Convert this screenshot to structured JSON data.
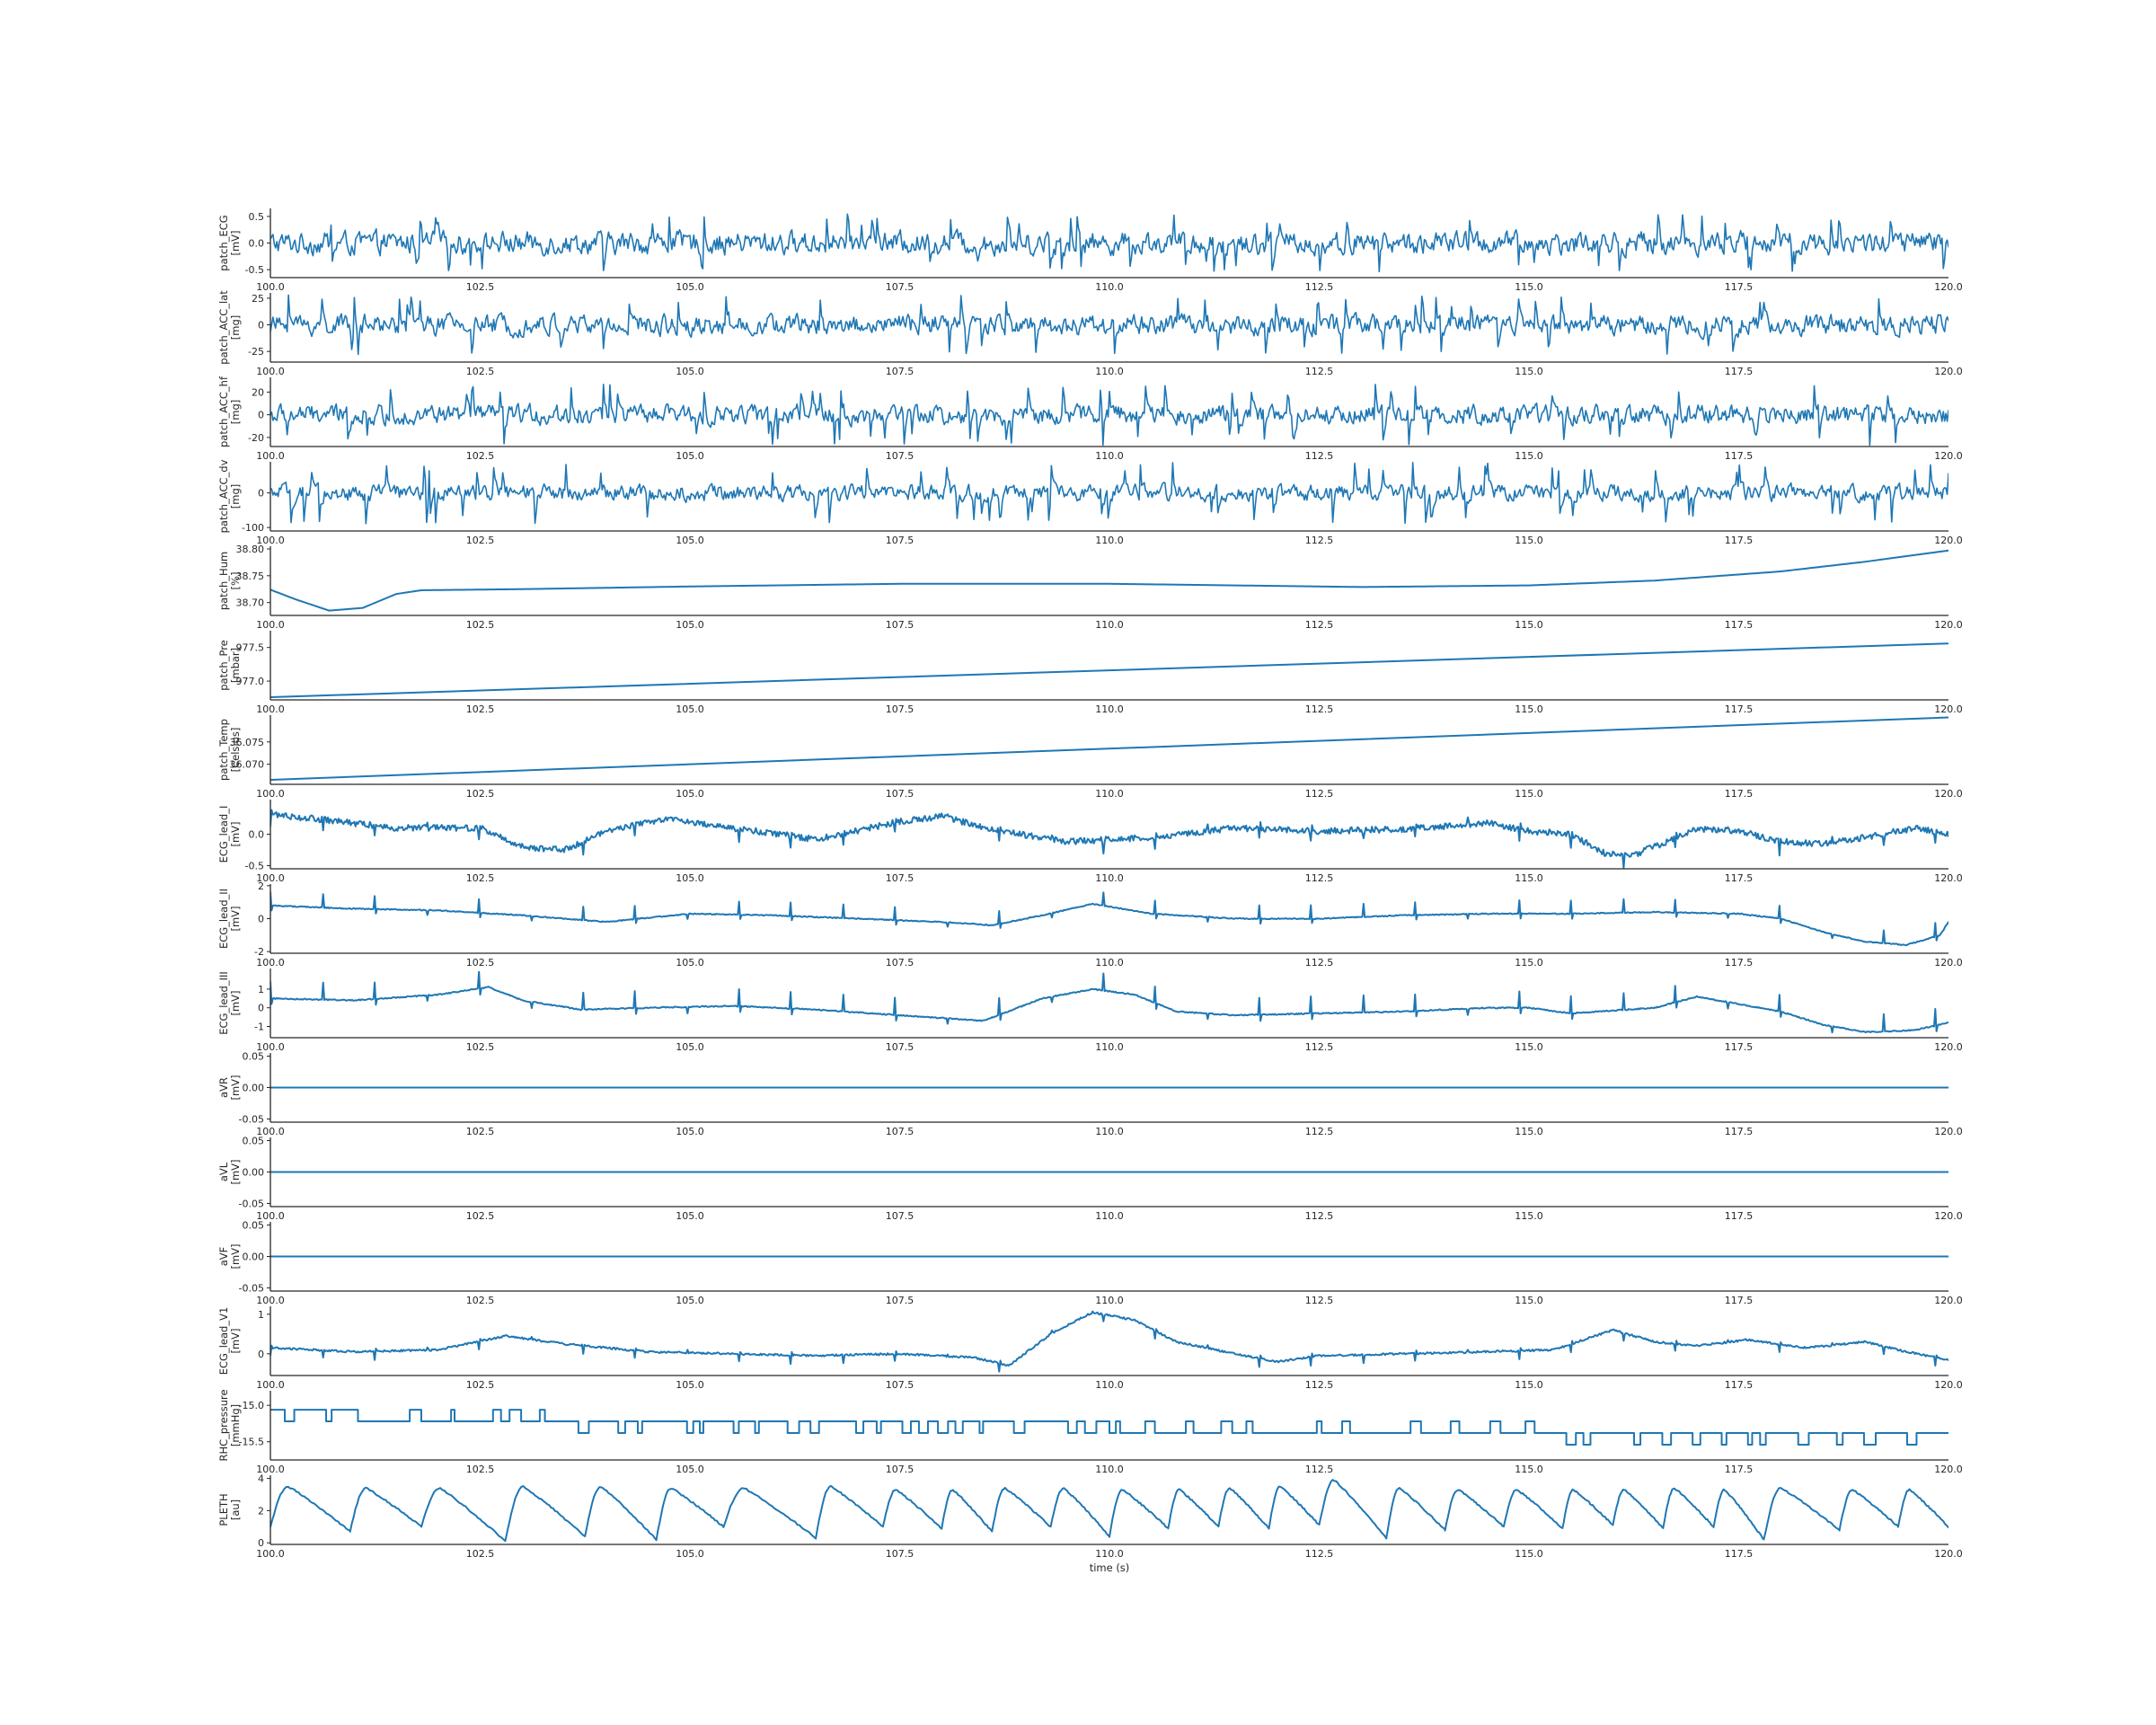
{
  "colors": {
    "trace": "#1f77b4",
    "axis": "#262626",
    "background": "#ffffff"
  },
  "chart_data": {
    "type": "line",
    "layout": "stacked-subplots",
    "shared_x": true,
    "xlabel": "time (s)",
    "xlim": [
      100.0,
      120.0
    ],
    "xticks": [
      "100.0",
      "102.5",
      "105.0",
      "107.5",
      "110.0",
      "112.5",
      "115.0",
      "117.5",
      "120.0"
    ],
    "grid": false,
    "panels": [
      {
        "name": "patch_ECG",
        "unit": "[mV]",
        "ylim": [
          -0.65,
          0.65
        ],
        "yticks": [
          "0.5",
          "0.0",
          "-0.5"
        ],
        "ytick_values": [
          0.5,
          0,
          -0.5
        ],
        "signal": {
          "kind": "noise",
          "mean": 0.0,
          "amp": 0.2,
          "spike": 0.55
        }
      },
      {
        "name": "patch_ACC_lat",
        "unit": "[mg]",
        "ylim": [
          -35,
          30
        ],
        "yticks": [
          "25",
          "0",
          "-25"
        ],
        "ytick_values": [
          25,
          0,
          -25
        ],
        "signal": {
          "kind": "noise",
          "mean": 0.0,
          "amp": 9,
          "spike": 28
        }
      },
      {
        "name": "patch_ACC_hf",
        "unit": "[mg]",
        "ylim": [
          -28,
          33
        ],
        "yticks": [
          "20",
          "0",
          "-20"
        ],
        "ytick_values": [
          20,
          0,
          -20
        ],
        "signal": {
          "kind": "noise",
          "mean": 0.0,
          "amp": 8,
          "spike": 27
        }
      },
      {
        "name": "patch_ACC_dv",
        "unit": "[mg]",
        "ylim": [
          -110,
          90
        ],
        "yticks": [
          "0",
          "-100"
        ],
        "ytick_values": [
          0,
          -100
        ],
        "signal": {
          "kind": "noise",
          "mean": 0.0,
          "amp": 22,
          "spike": 90
        }
      },
      {
        "name": "patch_Hum",
        "unit": "[%]",
        "ylim": [
          38.676,
          38.805
        ],
        "yticks": [
          "38.80",
          "38.75",
          "38.70"
        ],
        "ytick_values": [
          38.8,
          38.75,
          38.7
        ],
        "signal": {
          "kind": "keypoints",
          "points": [
            [
              100.0,
              38.724
            ],
            [
              100.3,
              38.706
            ],
            [
              100.7,
              38.685
            ],
            [
              101.1,
              38.69
            ],
            [
              101.5,
              38.716
            ],
            [
              101.8,
              38.723
            ],
            [
              103.0,
              38.725
            ],
            [
              105.0,
              38.73
            ],
            [
              107.5,
              38.735
            ],
            [
              110.0,
              38.735
            ],
            [
              113.0,
              38.729
            ],
            [
              115.0,
              38.732
            ],
            [
              116.5,
              38.741
            ],
            [
              118.0,
              38.758
            ],
            [
              119.0,
              38.776
            ],
            [
              120.0,
              38.797
            ]
          ]
        }
      },
      {
        "name": "patch_Pre",
        "unit": "[mbar]",
        "ylim": [
          976.72,
          977.75
        ],
        "yticks": [
          "977.5",
          "977.0"
        ],
        "ytick_values": [
          977.5,
          977.0
        ],
        "signal": {
          "kind": "linear",
          "start": 976.76,
          "end": 977.56
        }
      },
      {
        "name": "patch_Temp",
        "unit": "[Celsius]",
        "ylim": [
          36.0655,
          36.081
        ],
        "yticks": [
          "36.075",
          "36.070"
        ],
        "ytick_values": [
          36.075,
          36.07
        ],
        "signal": {
          "kind": "linear",
          "start": 36.0665,
          "end": 36.0805
        }
      },
      {
        "name": "ECG_lead_I",
        "unit": "[mV]",
        "ylim": [
          -0.55,
          0.55
        ],
        "yticks": [
          "0.0",
          "-0.5"
        ],
        "ytick_values": [
          0,
          -0.5
        ],
        "signal": {
          "kind": "drift",
          "points": [
            [
              100.0,
              0.32
            ],
            [
              101.5,
              0.1
            ],
            [
              102.5,
              0.1
            ],
            [
              103.0,
              -0.2
            ],
            [
              103.5,
              -0.25
            ],
            [
              104.0,
              0.05
            ],
            [
              104.7,
              0.25
            ],
            [
              105.5,
              0.1
            ],
            [
              106.5,
              -0.08
            ],
            [
              107.5,
              0.2
            ],
            [
              108.0,
              0.28
            ],
            [
              108.7,
              0.05
            ],
            [
              109.5,
              -0.12
            ],
            [
              110.5,
              -0.05
            ],
            [
              111.5,
              0.1
            ],
            [
              112.5,
              0.05
            ],
            [
              113.5,
              0.08
            ],
            [
              114.5,
              0.18
            ],
            [
              115.0,
              0.05
            ],
            [
              115.5,
              0.0
            ],
            [
              115.9,
              -0.3
            ],
            [
              116.2,
              -0.35
            ],
            [
              116.6,
              -0.15
            ],
            [
              117.0,
              0.08
            ],
            [
              117.5,
              0.05
            ],
            [
              118.0,
              -0.12
            ],
            [
              118.5,
              -0.15
            ],
            [
              119.0,
              -0.05
            ],
            [
              119.6,
              0.1
            ],
            [
              120.0,
              0.0
            ]
          ],
          "noise": 0.05,
          "spike": -0.18
        }
      },
      {
        "name": "ECG_lead_II",
        "unit": "[mV]",
        "ylim": [
          -2.1,
          2.1
        ],
        "yticks": [
          "2",
          "0",
          "-2"
        ],
        "ytick_values": [
          2,
          0,
          -2
        ],
        "signal": {
          "kind": "drift",
          "points": [
            [
              100.0,
              0.8
            ],
            [
              101.0,
              0.6
            ],
            [
              102.0,
              0.5
            ],
            [
              103.0,
              0.2
            ],
            [
              104.0,
              -0.2
            ],
            [
              105.0,
              0.3
            ],
            [
              106.0,
              0.2
            ],
            [
              107.0,
              0.0
            ],
            [
              108.0,
              -0.2
            ],
            [
              108.6,
              -0.4
            ],
            [
              109.2,
              0.2
            ],
            [
              109.8,
              0.9
            ],
            [
              110.5,
              0.3
            ],
            [
              111.5,
              0.0
            ],
            [
              112.5,
              0.0
            ],
            [
              113.5,
              0.2
            ],
            [
              114.5,
              0.3
            ],
            [
              115.5,
              0.3
            ],
            [
              116.5,
              0.4
            ],
            [
              117.5,
              0.3
            ],
            [
              118.0,
              0.0
            ],
            [
              118.5,
              -0.8
            ],
            [
              119.0,
              -1.4
            ],
            [
              119.5,
              -1.6
            ],
            [
              119.9,
              -1.0
            ],
            [
              120.0,
              -0.2
            ]
          ],
          "noise": 0.03,
          "spike": 0.8
        }
      },
      {
        "name": "ECG_lead_III",
        "unit": "[mV]",
        "ylim": [
          -1.6,
          2.1
        ],
        "yticks": [
          "1",
          "0",
          "-1"
        ],
        "ytick_values": [
          1,
          0,
          -1
        ],
        "signal": {
          "kind": "drift",
          "points": [
            [
              100.0,
              0.5
            ],
            [
              101.0,
              0.4
            ],
            [
              102.0,
              0.7
            ],
            [
              102.6,
              1.1
            ],
            [
              103.0,
              0.4
            ],
            [
              103.7,
              -0.1
            ],
            [
              104.5,
              0.0
            ],
            [
              105.5,
              0.1
            ],
            [
              106.5,
              -0.1
            ],
            [
              107.5,
              -0.4
            ],
            [
              108.5,
              -0.7
            ],
            [
              109.2,
              0.5
            ],
            [
              109.8,
              1.0
            ],
            [
              110.3,
              0.7
            ],
            [
              110.8,
              -0.2
            ],
            [
              111.5,
              -0.4
            ],
            [
              112.5,
              -0.3
            ],
            [
              113.5,
              -0.2
            ],
            [
              114.5,
              0.0
            ],
            [
              115.0,
              0.0
            ],
            [
              115.5,
              -0.3
            ],
            [
              116.5,
              0.0
            ],
            [
              117.0,
              0.6
            ],
            [
              117.5,
              0.2
            ],
            [
              118.0,
              -0.2
            ],
            [
              118.5,
              -0.9
            ],
            [
              119.0,
              -1.3
            ],
            [
              119.6,
              -1.2
            ],
            [
              120.0,
              -0.8
            ]
          ],
          "noise": 0.03,
          "spike": 0.9
        }
      },
      {
        "name": "aVR",
        "unit": "[mV]",
        "ylim": [
          -0.055,
          0.055
        ],
        "yticks": [
          "0.05",
          "0.00",
          "-0.05"
        ],
        "ytick_values": [
          0.05,
          0,
          -0.05
        ],
        "signal": {
          "kind": "linear",
          "start": 0.0,
          "end": 0.0
        }
      },
      {
        "name": "aVL",
        "unit": "[mV]",
        "ylim": [
          -0.055,
          0.055
        ],
        "yticks": [
          "0.05",
          "0.00",
          "-0.05"
        ],
        "ytick_values": [
          0.05,
          0,
          -0.05
        ],
        "signal": {
          "kind": "linear",
          "start": 0.0,
          "end": 0.0
        }
      },
      {
        "name": "aVF",
        "unit": "[mV]",
        "ylim": [
          -0.055,
          0.055
        ],
        "yticks": [
          "0.05",
          "0.00",
          "-0.05"
        ],
        "ytick_values": [
          0.05,
          0,
          -0.05
        ],
        "signal": {
          "kind": "linear",
          "start": 0.0,
          "end": 0.0
        }
      },
      {
        "name": "ECG_lead_V1",
        "unit": "[mV]",
        "ylim": [
          -0.55,
          1.2
        ],
        "yticks": [
          "1",
          "0"
        ],
        "ytick_values": [
          1,
          0
        ],
        "signal": {
          "kind": "drift",
          "points": [
            [
              100.0,
              0.15
            ],
            [
              101.0,
              0.05
            ],
            [
              102.0,
              0.1
            ],
            [
              102.8,
              0.45
            ],
            [
              103.5,
              0.25
            ],
            [
              104.5,
              0.05
            ],
            [
              105.5,
              0.0
            ],
            [
              106.5,
              -0.05
            ],
            [
              107.5,
              0.0
            ],
            [
              108.4,
              -0.1
            ],
            [
              108.8,
              -0.3
            ],
            [
              109.3,
              0.5
            ],
            [
              109.8,
              1.05
            ],
            [
              110.3,
              0.85
            ],
            [
              110.8,
              0.3
            ],
            [
              111.5,
              0.0
            ],
            [
              112.0,
              -0.2
            ],
            [
              112.5,
              -0.05
            ],
            [
              113.5,
              0.0
            ],
            [
              114.5,
              0.05
            ],
            [
              115.3,
              0.1
            ],
            [
              116.0,
              0.6
            ],
            [
              116.5,
              0.3
            ],
            [
              117.0,
              0.2
            ],
            [
              117.6,
              0.35
            ],
            [
              118.3,
              0.15
            ],
            [
              119.0,
              0.3
            ],
            [
              119.5,
              0.05
            ],
            [
              120.0,
              -0.15
            ]
          ],
          "noise": 0.025,
          "spike": -0.2
        }
      },
      {
        "name": "RHC_pressure",
        "unit": "[mmHg]",
        "ylim": [
          -15.75,
          -14.8
        ],
        "yticks": [
          "-15.0",
          "-15.5"
        ],
        "ytick_values": [
          -15.0,
          -15.5
        ],
        "signal": {
          "kind": "step",
          "levels": [
            -15.06,
            -15.22,
            -15.38,
            -15.54,
            -15.7
          ],
          "segments": [
            [
              100.0,
              101.1,
              0,
              1
            ],
            [
              101.1,
              103.4,
              1,
              0
            ],
            [
              103.4,
              110.0,
              1,
              2
            ],
            [
              110.0,
              115.2,
              2,
              1
            ],
            [
              115.2,
              120.0,
              2,
              3
            ]
          ]
        }
      },
      {
        "name": "PLETH",
        "unit": "[au]",
        "ylim": [
          -0.1,
          4.2
        ],
        "yticks": [
          "4",
          "2",
          "0"
        ],
        "ytick_values": [
          4,
          2,
          0
        ],
        "signal": {
          "kind": "pleth",
          "beats": [
            100.0,
            100.95,
            101.8,
            102.8,
            103.75,
            104.6,
            105.4,
            106.5,
            107.3,
            108.0,
            108.6,
            109.3,
            110.0,
            110.7,
            111.3,
            111.9,
            112.5,
            113.3,
            114.0,
            114.7,
            115.4,
            116.0,
            116.6,
            117.2,
            117.8,
            118.7,
            119.4,
            120.0
          ],
          "troughs": [
            1.0,
            0.7,
            1.0,
            0.1,
            0.4,
            0.2,
            1.0,
            0.3,
            1.0,
            0.9,
            0.7,
            1.0,
            0.4,
            0.9,
            1.0,
            0.9,
            1.1,
            0.3,
            0.8,
            1.0,
            0.9,
            1.1,
            0.9,
            1.0,
            0.2,
            0.8,
            1.0
          ],
          "peaks": [
            3.5,
            3.4,
            3.4,
            3.5,
            3.5,
            3.4,
            3.4,
            3.5,
            3.3,
            3.3,
            3.4,
            3.4,
            3.3,
            3.3,
            3.4,
            3.5,
            3.9,
            3.4,
            3.3,
            3.3,
            3.3,
            3.3,
            3.4,
            3.3,
            3.4,
            3.3,
            3.3
          ]
        }
      }
    ]
  }
}
